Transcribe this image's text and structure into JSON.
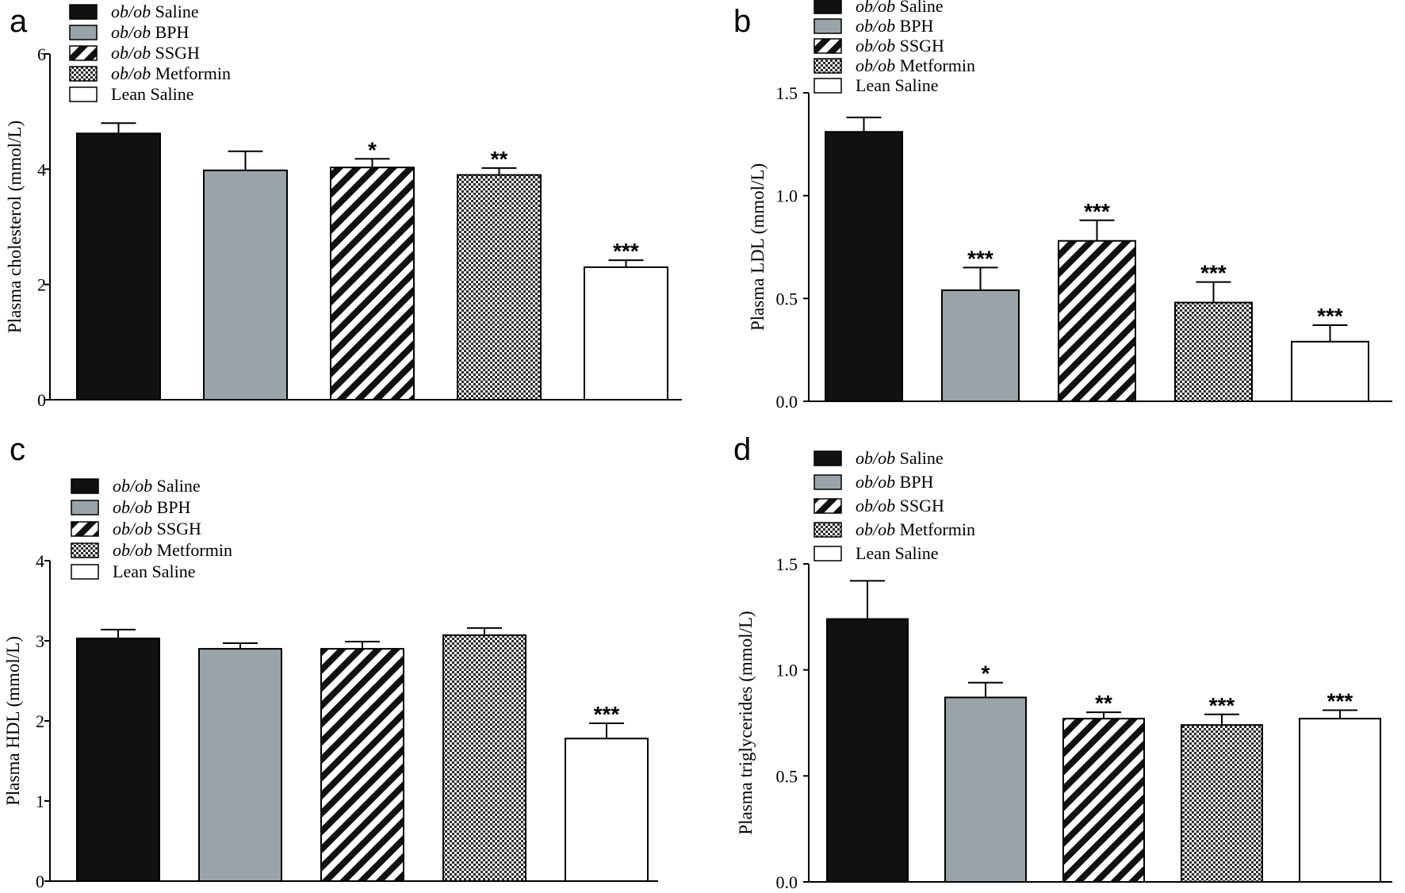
{
  "legend": {
    "entries": [
      {
        "italic": "ob/ob",
        "rest": " Saline",
        "fill": "#111111",
        "pattern": "solid"
      },
      {
        "italic": "ob/ob",
        "rest": " BPH",
        "fill": "#98a4a8",
        "pattern": "solid"
      },
      {
        "italic": "ob/ob",
        "rest": " SSGH",
        "fill": "#ffffff",
        "pattern": "stripes"
      },
      {
        "italic": "ob/ob",
        "rest": " Metformin",
        "fill": "#ffffff",
        "pattern": "checker"
      },
      {
        "italic": "",
        "rest": "Lean  Saline",
        "fill": "#ffffff",
        "pattern": "none"
      }
    ]
  },
  "chart_data": [
    {
      "panel": "a",
      "type": "bar",
      "ylabel": "Plasma cholesterol (mmol/L)",
      "ylim": [
        0,
        6
      ],
      "yticks": [
        0,
        2,
        4,
        6
      ],
      "tick_labels": [
        "0",
        "2",
        "4",
        "6"
      ],
      "categories": [
        "ob/ob Saline",
        "ob/ob BPH",
        "ob/ob SSGH",
        "ob/ob Metformin",
        "Lean Saline"
      ],
      "values": [
        4.62,
        3.98,
        4.03,
        3.9,
        2.3
      ],
      "errors": [
        0.18,
        0.33,
        0.15,
        0.12,
        0.12
      ],
      "significance": [
        "",
        "",
        "*",
        "**",
        "***"
      ]
    },
    {
      "panel": "b",
      "type": "bar",
      "ylabel": "Plasma LDL (mmol/L)",
      "ylim": [
        0,
        1.5
      ],
      "yticks": [
        0,
        0.5,
        1.0,
        1.5
      ],
      "tick_labels": [
        "0.0",
        "0.5",
        "1.0",
        "1.5"
      ],
      "categories": [
        "ob/ob Saline",
        "ob/ob BPH",
        "ob/ob SSGH",
        "ob/ob Metformin",
        "Lean Saline"
      ],
      "values": [
        1.31,
        0.54,
        0.78,
        0.48,
        0.29
      ],
      "errors": [
        0.07,
        0.11,
        0.1,
        0.1,
        0.08
      ],
      "significance": [
        "",
        "***",
        "***",
        "***",
        "***"
      ]
    },
    {
      "panel": "c",
      "type": "bar",
      "ylabel": "Plasma HDL (mmol/L)",
      "ylim": [
        0,
        4
      ],
      "yticks": [
        0,
        1,
        2,
        3,
        4
      ],
      "tick_labels": [
        "0",
        "1",
        "2",
        "3",
        "4"
      ],
      "categories": [
        "ob/ob Saline",
        "ob/ob BPH",
        "ob/ob SSGH",
        "ob/ob Metformin",
        "Lean Saline"
      ],
      "values": [
        3.03,
        2.9,
        2.9,
        3.07,
        1.78
      ],
      "errors": [
        0.11,
        0.07,
        0.09,
        0.09,
        0.19
      ],
      "significance": [
        "",
        "",
        "",
        "",
        "***"
      ]
    },
    {
      "panel": "d",
      "type": "bar",
      "ylabel": "Plasma triglycerides (mmol/L)",
      "ylim": [
        0,
        1.5
      ],
      "yticks": [
        0,
        0.5,
        1.0,
        1.5
      ],
      "tick_labels": [
        "0.0",
        "0.5",
        "1.0",
        "1.5"
      ],
      "categories": [
        "ob/ob Saline",
        "ob/ob BPH",
        "ob/ob SSGH",
        "ob/ob Metformin",
        "Lean Saline"
      ],
      "values": [
        1.24,
        0.87,
        0.77,
        0.74,
        0.77
      ],
      "errors": [
        0.18,
        0.07,
        0.03,
        0.05,
        0.04
      ],
      "significance": [
        "",
        "*",
        "**",
        "***",
        "***"
      ]
    }
  ]
}
